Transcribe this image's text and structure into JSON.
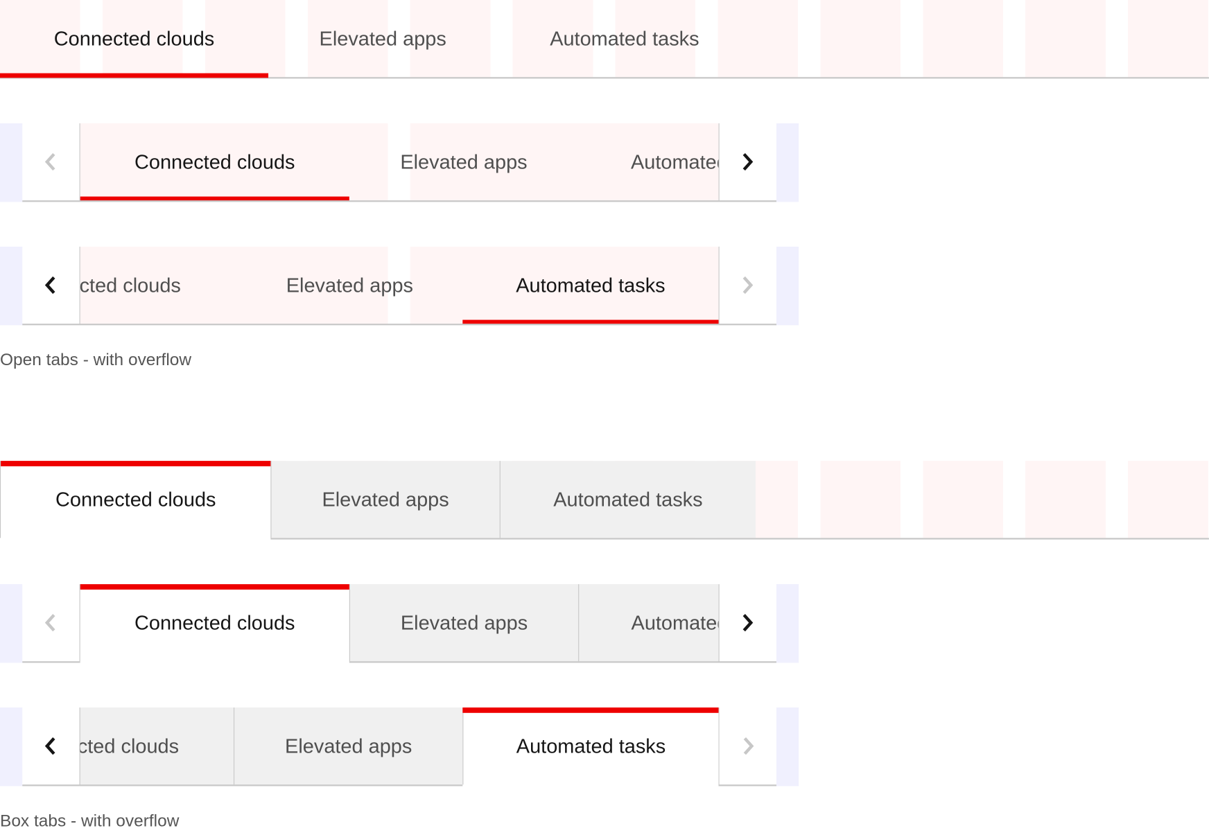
{
  "tabs": [
    "Connected clouds",
    "Elevated apps",
    "Automated tasks"
  ],
  "captions": {
    "open": "Open tabs - with overflow",
    "box": "Box tabs - with overflow"
  },
  "icons": {
    "scroll_left": "chevron-left-icon",
    "scroll_right": "chevron-right-icon"
  },
  "colors": {
    "accent": "#ee0000",
    "border": "#c7c7c7",
    "box_inactive": "#f0f0f0",
    "grid_overlay": "#fff5f5",
    "scroll_overlay": "#f0f0fe"
  },
  "states": {
    "open_full": {
      "active": 0
    },
    "open_overflow_start": {
      "active": 0,
      "left_enabled": false,
      "right_enabled": true
    },
    "open_overflow_end": {
      "active": 2,
      "left_enabled": true,
      "right_enabled": false
    },
    "box_full": {
      "active": 0
    },
    "box_overflow_start": {
      "active": 0,
      "left_enabled": false,
      "right_enabled": true
    },
    "box_overflow_end": {
      "active": 2,
      "left_enabled": true,
      "right_enabled": false
    }
  }
}
